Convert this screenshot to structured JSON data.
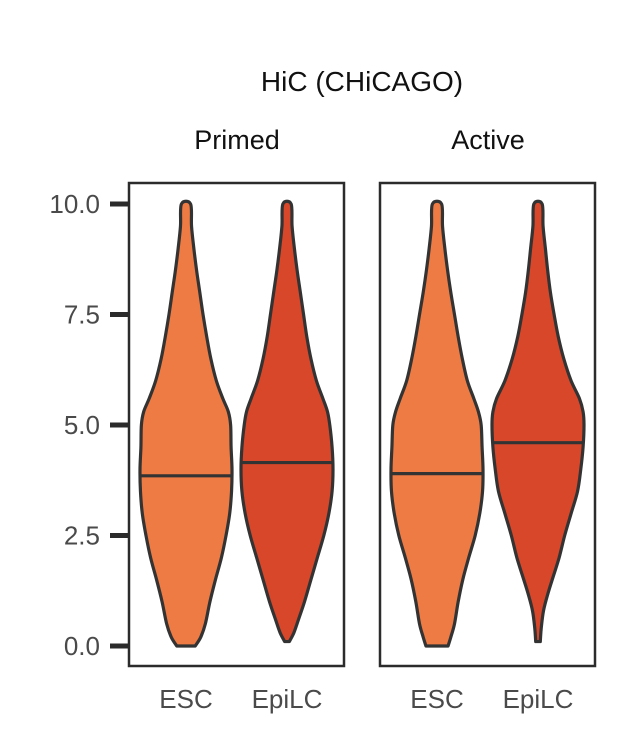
{
  "chart_data": {
    "type": "violin",
    "title": "HiC (CHiCAGO)",
    "xlabel": "",
    "ylabel": "",
    "ylim": [
      0,
      10
    ],
    "y_ticks": [
      "0.0",
      "2.5",
      "5.0",
      "7.5",
      "10.0"
    ],
    "y_tick_values": [
      0,
      2.5,
      5.0,
      7.5,
      10.0
    ],
    "grid": false,
    "legend": "none",
    "categories": [
      "ESC",
      "EpiLC"
    ],
    "colors": {
      "ESC": "#ef7b44",
      "EpiLC": "#d9472a"
    },
    "facets": [
      {
        "label": "Primed",
        "violins": [
          {
            "category": "ESC",
            "median": 3.85,
            "min": 0.0,
            "max": 10.0,
            "density": [
              [
                0.0,
                0.2
              ],
              [
                0.2,
                0.32
              ],
              [
                0.5,
                0.42
              ],
              [
                1.0,
                0.52
              ],
              [
                1.5,
                0.64
              ],
              [
                2.0,
                0.77
              ],
              [
                2.5,
                0.87
              ],
              [
                3.0,
                0.95
              ],
              [
                3.5,
                0.99
              ],
              [
                4.0,
                1.0
              ],
              [
                4.5,
                0.98
              ],
              [
                5.0,
                0.97
              ],
              [
                5.3,
                0.92
              ],
              [
                5.6,
                0.8
              ],
              [
                6.0,
                0.66
              ],
              [
                6.5,
                0.54
              ],
              [
                7.0,
                0.45
              ],
              [
                7.5,
                0.37
              ],
              [
                8.0,
                0.3
              ],
              [
                8.5,
                0.23
              ],
              [
                9.0,
                0.17
              ],
              [
                9.5,
                0.12
              ],
              [
                10.0,
                0.1
              ]
            ]
          },
          {
            "category": "EpiLC",
            "median": 4.15,
            "min": 0.1,
            "max": 10.0,
            "density": [
              [
                0.1,
                0.05
              ],
              [
                0.3,
                0.15
              ],
              [
                0.6,
                0.25
              ],
              [
                1.0,
                0.38
              ],
              [
                1.5,
                0.52
              ],
              [
                2.0,
                0.66
              ],
              [
                2.5,
                0.8
              ],
              [
                3.0,
                0.91
              ],
              [
                3.5,
                0.98
              ],
              [
                4.0,
                1.0
              ],
              [
                4.5,
                0.98
              ],
              [
                5.0,
                0.93
              ],
              [
                5.3,
                0.88
              ],
              [
                5.6,
                0.78
              ],
              [
                6.0,
                0.64
              ],
              [
                6.5,
                0.52
              ],
              [
                7.0,
                0.43
              ],
              [
                7.5,
                0.36
              ],
              [
                8.0,
                0.29
              ],
              [
                8.5,
                0.22
              ],
              [
                9.0,
                0.16
              ],
              [
                9.5,
                0.11
              ],
              [
                10.0,
                0.09
              ]
            ]
          }
        ]
      },
      {
        "label": "Active",
        "violins": [
          {
            "category": "ESC",
            "median": 3.9,
            "min": 0.0,
            "max": 10.0,
            "density": [
              [
                0.0,
                0.24
              ],
              [
                0.2,
                0.3
              ],
              [
                0.5,
                0.38
              ],
              [
                1.0,
                0.46
              ],
              [
                1.5,
                0.56
              ],
              [
                2.0,
                0.69
              ],
              [
                2.5,
                0.83
              ],
              [
                3.0,
                0.93
              ],
              [
                3.5,
                0.99
              ],
              [
                4.0,
                1.0
              ],
              [
                4.5,
                0.98
              ],
              [
                5.0,
                0.96
              ],
              [
                5.3,
                0.9
              ],
              [
                5.6,
                0.8
              ],
              [
                6.0,
                0.66
              ],
              [
                6.5,
                0.55
              ],
              [
                7.0,
                0.46
              ],
              [
                7.5,
                0.38
              ],
              [
                8.0,
                0.3
              ],
              [
                8.5,
                0.23
              ],
              [
                9.0,
                0.17
              ],
              [
                9.5,
                0.12
              ],
              [
                10.0,
                0.1
              ]
            ]
          },
          {
            "category": "EpiLC",
            "median": 4.6,
            "min": 0.1,
            "max": 10.0,
            "density": [
              [
                0.1,
                0.05
              ],
              [
                0.4,
                0.07
              ],
              [
                0.8,
                0.12
              ],
              [
                1.2,
                0.22
              ],
              [
                1.6,
                0.34
              ],
              [
                2.0,
                0.46
              ],
              [
                2.5,
                0.58
              ],
              [
                3.0,
                0.72
              ],
              [
                3.5,
                0.86
              ],
              [
                4.0,
                0.93
              ],
              [
                4.5,
                0.98
              ],
              [
                5.0,
                1.0
              ],
              [
                5.3,
                0.98
              ],
              [
                5.6,
                0.9
              ],
              [
                6.0,
                0.72
              ],
              [
                6.5,
                0.56
              ],
              [
                7.0,
                0.44
              ],
              [
                7.5,
                0.35
              ],
              [
                8.0,
                0.27
              ],
              [
                8.5,
                0.21
              ],
              [
                9.0,
                0.16
              ],
              [
                9.5,
                0.11
              ],
              [
                10.0,
                0.09
              ]
            ]
          }
        ]
      }
    ]
  }
}
